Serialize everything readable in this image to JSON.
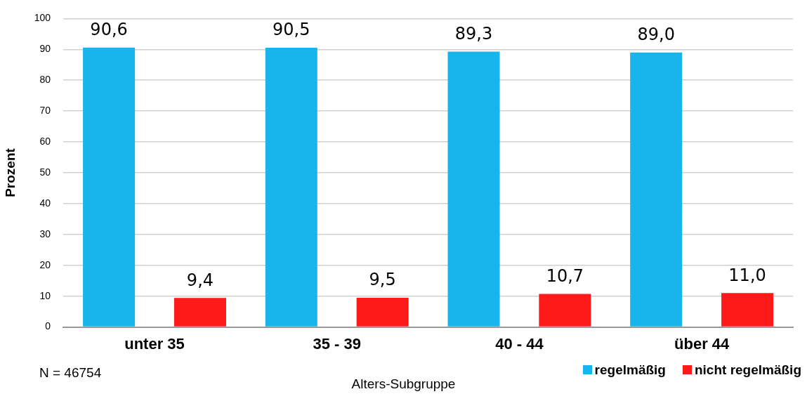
{
  "chart_data": {
    "type": "bar",
    "ylabel": "Prozent",
    "xlabel": "Alters-Subgruppe",
    "categories": [
      "unter 35",
      "35 - 39",
      "40 - 44",
      "über 44"
    ],
    "series": [
      {
        "name": "regelmäßig",
        "color": "#18b4ec",
        "values": [
          90.6,
          90.5,
          89.3,
          89.0
        ],
        "value_labels": [
          "90,6",
          "90,5",
          "89,3",
          "89,0"
        ]
      },
      {
        "name": "nicht regelmäßig",
        "color": "#ff1a1a",
        "values": [
          9.4,
          9.5,
          10.7,
          11.0
        ],
        "value_labels": [
          "9,4",
          "9,5",
          "10,7",
          "11,0"
        ]
      }
    ],
    "ylim": [
      0,
      100
    ],
    "yticks": [
      0,
      10,
      20,
      30,
      40,
      50,
      60,
      70,
      80,
      90,
      100
    ],
    "grid": "y",
    "legend": "bottom right",
    "annotations": [
      "N = 46754"
    ]
  }
}
